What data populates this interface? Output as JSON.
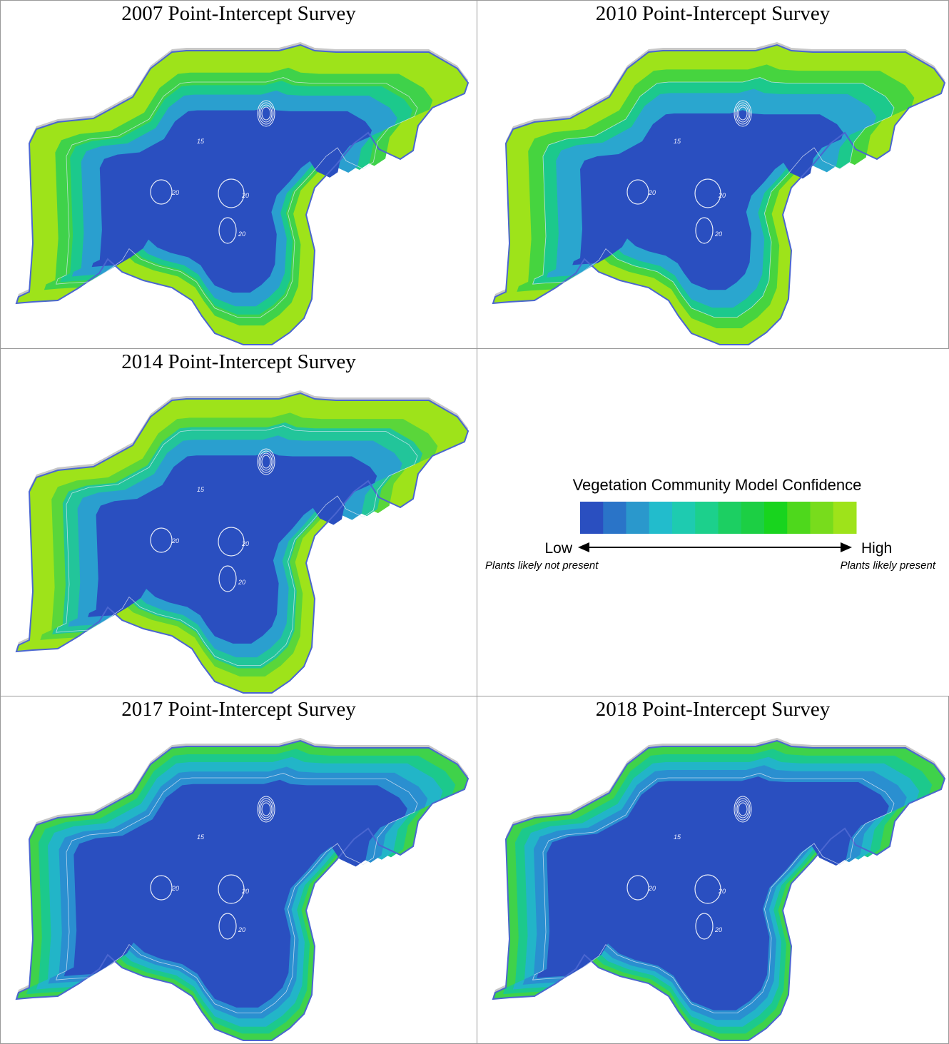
{
  "panels": [
    {
      "title": "2007 Point-Intercept Survey",
      "contour_labels": [
        "15",
        "20",
        "20",
        "20"
      ],
      "zone_colors": [
        "#9ee31a",
        "#3fd24a",
        "#1cc98c",
        "#2a9fcf",
        "#2a4fc0"
      ]
    },
    {
      "title": "2010 Point-Intercept Survey",
      "contour_labels": [
        "15",
        "20",
        "20",
        "20"
      ],
      "zone_colors": [
        "#9ee31a",
        "#46d43f",
        "#1cc98c",
        "#2aa6cf",
        "#2a4fc0"
      ]
    },
    {
      "title": "2014 Point-Intercept Survey",
      "contour_labels": [
        "15",
        "20",
        "20",
        "20"
      ],
      "zone_colors": [
        "#9ee31a",
        "#5ad63a",
        "#22c59a",
        "#2a9fcf",
        "#2a4fc0"
      ]
    },
    {
      "title": "2017 Point-Intercept Survey",
      "contour_labels": [
        "15",
        "20",
        "20",
        "20"
      ],
      "zone_colors": [
        "#3fd24a",
        "#1cc98c",
        "#22b5c8",
        "#2a8fd0",
        "#2a4fc0"
      ]
    },
    {
      "title": "2018 Point-Intercept Survey",
      "contour_labels": [
        "15",
        "20",
        "20",
        "20"
      ],
      "zone_colors": [
        "#3fd24a",
        "#1cc98c",
        "#22b5c8",
        "#2a8fd0",
        "#2a4fc0"
      ]
    }
  ],
  "legend": {
    "title": "Vegetation Community Model Confidence",
    "colors": [
      "#2a4fc0",
      "#2a74c8",
      "#2a98cc",
      "#22bccc",
      "#1ecbb0",
      "#1cd08c",
      "#1ccf62",
      "#1ccf44",
      "#18d41e",
      "#4ed81c",
      "#78dc1c",
      "#9ee31a"
    ],
    "low": "Low",
    "high": "High",
    "low_note": "Plants likely not present",
    "high_note": "Plants likely present"
  }
}
